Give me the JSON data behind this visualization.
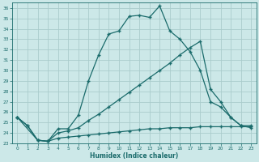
{
  "xlabel": "Humidex (Indice chaleur)",
  "bg_color": "#cce8e8",
  "grid_color": "#aacccc",
  "line_color": "#1a6b6b",
  "xlim": [
    -0.5,
    23.5
  ],
  "ylim": [
    23,
    36.5
  ],
  "xticks": [
    0,
    1,
    2,
    3,
    4,
    5,
    6,
    7,
    8,
    9,
    10,
    11,
    12,
    13,
    14,
    15,
    16,
    17,
    18,
    19,
    20,
    21,
    22,
    23
  ],
  "yticks": [
    23,
    24,
    25,
    26,
    27,
    28,
    29,
    30,
    31,
    32,
    33,
    34,
    35,
    36
  ],
  "line1_x": [
    0,
    1,
    2,
    3,
    4,
    5,
    6,
    7,
    8,
    9,
    10,
    11,
    12,
    13,
    14,
    15,
    16,
    17,
    18,
    19,
    20,
    21,
    22,
    23
  ],
  "line1_y": [
    25.5,
    24.7,
    23.3,
    23.2,
    24.4,
    24.4,
    25.7,
    29.0,
    31.5,
    33.5,
    33.8,
    35.2,
    35.3,
    35.1,
    36.2,
    33.8,
    33.0,
    31.8,
    30.0,
    27.0,
    26.5,
    25.5,
    24.7,
    24.7
  ],
  "line2_x": [
    0,
    1,
    2,
    3,
    4,
    5,
    6,
    7,
    8,
    9,
    10,
    11,
    12,
    13,
    14,
    15,
    16,
    17,
    18,
    19,
    20,
    21,
    22,
    23
  ],
  "line2_y": [
    25.5,
    24.7,
    23.3,
    23.2,
    24.0,
    24.2,
    24.5,
    25.2,
    25.8,
    26.5,
    27.2,
    27.9,
    28.6,
    29.3,
    30.0,
    30.7,
    31.5,
    32.2,
    32.8,
    28.2,
    27.0,
    25.5,
    24.7,
    24.5
  ],
  "line3_x": [
    0,
    2,
    3,
    4,
    5,
    6,
    7,
    8,
    9,
    10,
    11,
    12,
    13,
    14,
    15,
    16,
    17,
    18,
    19,
    20,
    21,
    22,
    23
  ],
  "line3_y": [
    25.5,
    23.3,
    23.2,
    23.5,
    23.6,
    23.7,
    23.8,
    23.9,
    24.0,
    24.1,
    24.2,
    24.3,
    24.4,
    24.4,
    24.5,
    24.5,
    24.5,
    24.6,
    24.6,
    24.6,
    24.6,
    24.6,
    24.6
  ]
}
